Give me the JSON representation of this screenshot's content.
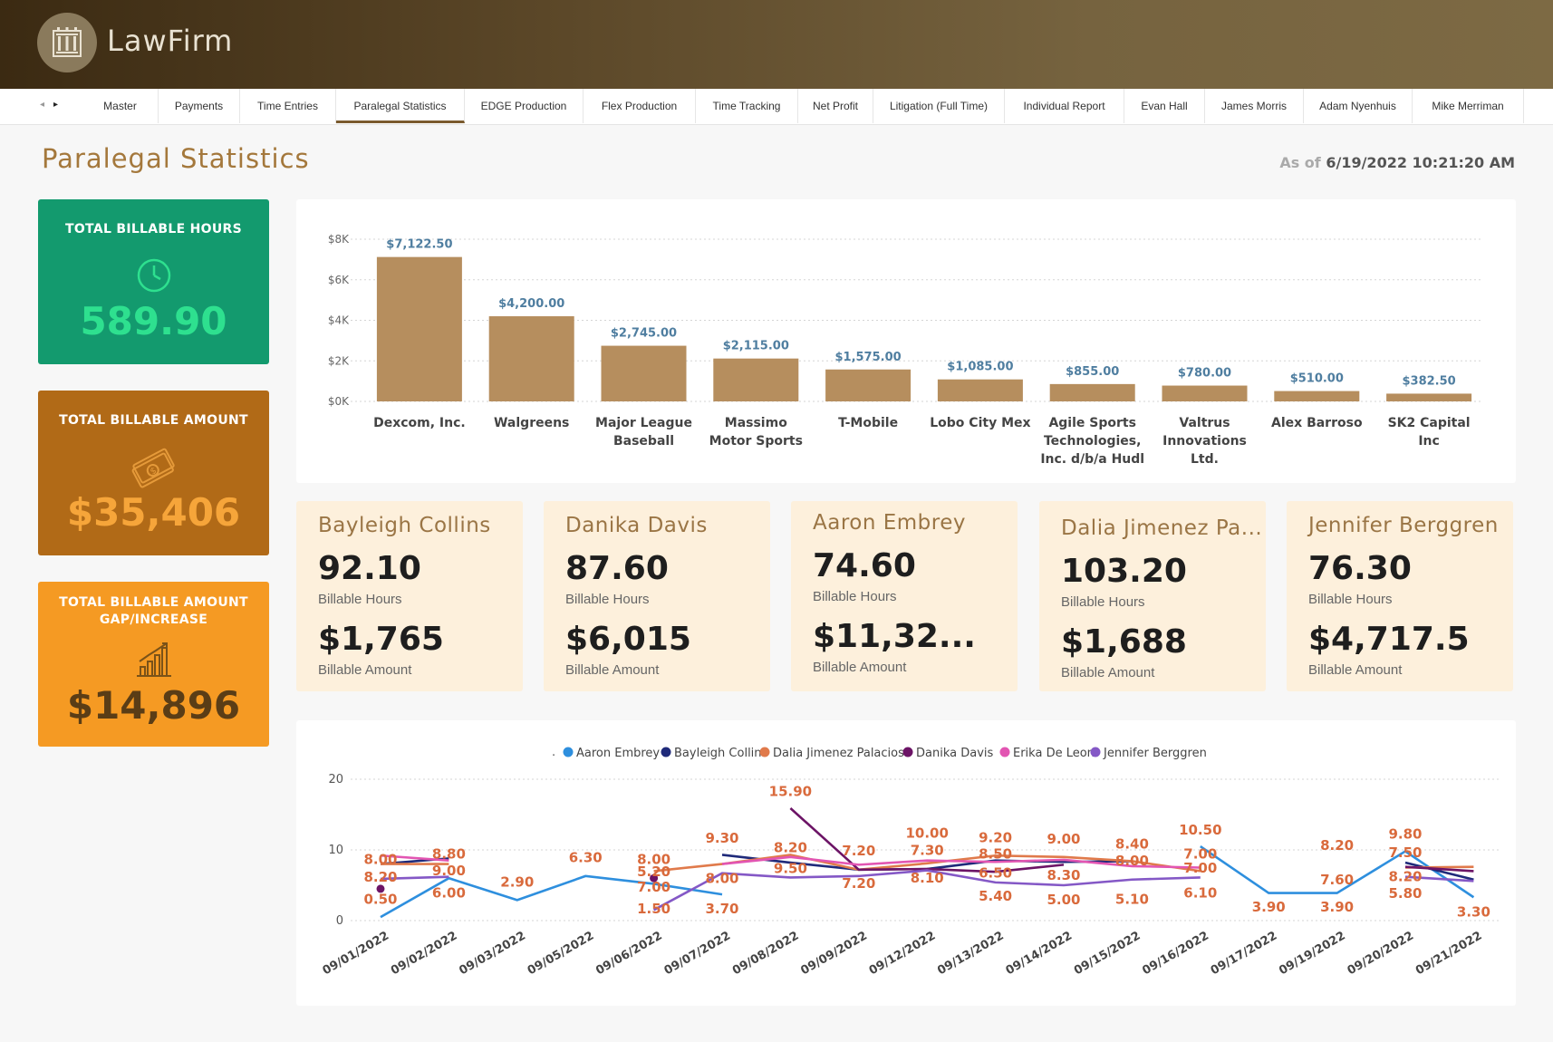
{
  "app": {
    "name": "LawFirm"
  },
  "tabs": [
    "Master",
    "Payments",
    "Time Entries",
    "Paralegal Statistics",
    "EDGE Production",
    "Flex Production",
    "Time Tracking",
    "Net Profit",
    "Litigation (Full Time)",
    "Individual Report",
    "Evan Hall",
    "James Morris",
    "Adam Nyenhuis",
    "Mike Merriman"
  ],
  "active_tab": "Paralegal Statistics",
  "page": {
    "title": "Paralegal Statistics",
    "as_of_label": "As of",
    "as_of_value": "6/19/2022 10:21:20 AM"
  },
  "kpis": {
    "hours": {
      "label": "TOTAL BILLABLE HOURS",
      "value": "589.90",
      "color": "#139a6e",
      "value_color": "#2ee08f",
      "icon": "clock-icon"
    },
    "amount": {
      "label": "TOTAL BILLABLE AMOUNT",
      "value": "$35,406",
      "color": "#b16a17",
      "value_color": "#f6a53a",
      "icon": "money-icon"
    },
    "gap": {
      "label_line1": "TOTAL BILLABLE AMOUNT",
      "label_line2": "GAP/INCREASE",
      "value": "$14,896",
      "color": "#f59a23",
      "value_color": "#5a3d16",
      "icon": "bar-chart-icon"
    }
  },
  "people": [
    {
      "name": "Bayleigh Collins",
      "hours": "92.10",
      "hours_label": "Billable Hours",
      "amount": "$1,765",
      "amount_label": "Billable Amount"
    },
    {
      "name": "Danika Davis",
      "hours": "87.60",
      "hours_label": "Billable Hours",
      "amount": "$6,015",
      "amount_label": "Billable Amount"
    },
    {
      "name": "Aaron Embrey",
      "hours": "74.60",
      "hours_label": "Billable Hours",
      "amount": "$11,32...",
      "amount_label": "Billable Amount"
    },
    {
      "name": "Dalia Jimenez Pa...",
      "hours": "103.20",
      "hours_label": "Billable Hours",
      "amount": "$1,688",
      "amount_label": "Billable Amount"
    },
    {
      "name": "Jennifer Berggren",
      "hours": "76.30",
      "hours_label": "Billable Hours",
      "amount": "$4,717.5",
      "amount_label": "Billable Amount"
    }
  ],
  "chart_data": [
    {
      "type": "bar",
      "categories": [
        "Dexcom, Inc.",
        "Walgreens",
        "Major League Baseball",
        "Massimo Motor Sports",
        "T-Mobile",
        "Lobo City Mex",
        "Agile Sports Technologies, Inc. d/b/a Hudl",
        "Valtrus Innovations Ltd.",
        "Alex Barroso",
        "SK2 Capital Inc"
      ],
      "category_lines": [
        [
          "Dexcom, Inc."
        ],
        [
          "Walgreens"
        ],
        [
          "Major League",
          "Baseball"
        ],
        [
          "Massimo",
          "Motor Sports"
        ],
        [
          "T-Mobile"
        ],
        [
          "Lobo City Mex"
        ],
        [
          "Agile Sports",
          "Technologies,",
          "Inc. d/b/a Hudl"
        ],
        [
          "Valtrus",
          "Innovations",
          "Ltd."
        ],
        [
          "Alex Barroso"
        ],
        [
          "SK2 Capital",
          "Inc"
        ]
      ],
      "values": [
        7122.5,
        4200,
        2745,
        2115,
        1575,
        1085,
        855,
        780,
        510,
        382.5
      ],
      "data_labels": [
        "$7,122.50",
        "$4,200.00",
        "$2,745.00",
        "$2,115.00",
        "$1,575.00",
        "$1,085.00",
        "$855.00",
        "$780.00",
        "$510.00",
        "$382.50"
      ],
      "y_ticks": [
        "$0K",
        "$2K",
        "$4K",
        "$6K",
        "$8K"
      ],
      "y_tick_values": [
        0,
        2000,
        4000,
        6000,
        8000
      ],
      "ylim": [
        0,
        8000
      ],
      "bar_color": "#b68e5e",
      "label_color": "#4f7ea0",
      "grid": true
    },
    {
      "type": "line",
      "x": [
        "09/01/2022",
        "09/02/2022",
        "09/03/2022",
        "09/05/2022",
        "09/06/2022",
        "09/07/2022",
        "09/08/2022",
        "09/09/2022",
        "09/12/2022",
        "09/13/2022",
        "09/14/2022",
        "09/15/2022",
        "09/16/2022",
        "09/17/2022",
        "09/19/2022",
        "09/20/2022",
        "09/21/2022"
      ],
      "y_ticks": [
        "0",
        "10",
        "20"
      ],
      "y_tick_values": [
        0,
        10,
        20
      ],
      "ylim": [
        0,
        20
      ],
      "legend_marker": ".",
      "legend_position": "top",
      "series": [
        {
          "name": "Aaron Embrey",
          "color": "#2e8fde",
          "values": [
            0.5,
            6.0,
            2.9,
            6.3,
            5.2,
            3.7,
            null,
            null,
            null,
            null,
            null,
            null,
            10.5,
            3.9,
            3.9,
            9.8,
            3.3
          ]
        },
        {
          "name": "Bayleigh Collins",
          "color": "#1f2a7a",
          "values": [
            8.0,
            8.8,
            null,
            null,
            null,
            9.3,
            8.2,
            7.2,
            7.3,
            8.5,
            8.3,
            8.4,
            null,
            null,
            null,
            8.2,
            5.8
          ]
        },
        {
          "name": "Dalia Jimenez Palacios",
          "color": "#e07a4b",
          "values": [
            8.0,
            8.0,
            null,
            null,
            7.0,
            8.0,
            9.3,
            7.2,
            8.1,
            9.2,
            9.0,
            8.4,
            7.0,
            null,
            null,
            7.5,
            7.6
          ]
        },
        {
          "name": "Danika Davis",
          "color": "#6c1466",
          "values": [
            4.5,
            null,
            null,
            null,
            6.0,
            null,
            15.9,
            7.2,
            7.3,
            6.9,
            7.9,
            null,
            null,
            null,
            null,
            7.6,
            7.0
          ]
        },
        {
          "name": "Erika De Leon",
          "color": "#e255b2",
          "values": [
            9.2,
            8.5,
            null,
            null,
            null,
            8.0,
            9.0,
            7.9,
            8.5,
            8.3,
            8.6,
            7.7,
            7.5,
            null,
            null,
            null,
            null
          ]
        },
        {
          "name": "Jennifer Berggren",
          "color": "#8458c6",
          "values": [
            5.9,
            6.2,
            null,
            null,
            1.5,
            6.7,
            6.1,
            6.3,
            7.1,
            5.4,
            5.0,
            5.8,
            6.1,
            null,
            null,
            6.2,
            5.6
          ]
        }
      ],
      "data_labels": [
        {
          "x": "09/01/2022",
          "text": "8.00",
          "y": 8.0
        },
        {
          "x": "09/01/2022",
          "text": "8.20",
          "y": 5.5
        },
        {
          "x": "09/01/2022",
          "text": "0.50",
          "y": 2.4
        },
        {
          "x": "09/02/2022",
          "text": "8.80",
          "y": 8.8
        },
        {
          "x": "09/02/2022",
          "text": "9.00",
          "y": 6.4
        },
        {
          "x": "09/02/2022",
          "text": "6.00",
          "y": 3.3
        },
        {
          "x": "09/03/2022",
          "text": "2.90",
          "y": 4.8
        },
        {
          "x": "09/05/2022",
          "text": "6.30",
          "y": 8.3
        },
        {
          "x": "09/06/2022",
          "text": "8.00",
          "y": 8.0
        },
        {
          "x": "09/06/2022",
          "text": "5.20",
          "y": 6.3
        },
        {
          "x": "09/06/2022",
          "text": "7.00",
          "y": 4.1
        },
        {
          "x": "09/06/2022",
          "text": "1.50",
          "y": 1.0
        },
        {
          "x": "09/07/2022",
          "text": "9.30",
          "y": 11.0
        },
        {
          "x": "09/07/2022",
          "text": "8.00",
          "y": 5.3
        },
        {
          "x": "09/07/2022",
          "text": "3.70",
          "y": 1.0
        },
        {
          "x": "09/08/2022",
          "text": "15.90",
          "y": 17.6
        },
        {
          "x": "09/08/2022",
          "text": "8.20",
          "y": 9.7
        },
        {
          "x": "09/08/2022",
          "text": "9.50",
          "y": 6.7
        },
        {
          "x": "09/09/2022",
          "text": "7.20",
          "y": 9.2
        },
        {
          "x": "09/09/2022",
          "text": "7.20",
          "y": 4.6
        },
        {
          "x": "09/12/2022",
          "text": "10.00",
          "y": 11.7
        },
        {
          "x": "09/12/2022",
          "text": "7.30",
          "y": 9.3
        },
        {
          "x": "09/12/2022",
          "text": "8.10",
          "y": 5.4
        },
        {
          "x": "09/13/2022",
          "text": "9.20",
          "y": 11.1
        },
        {
          "x": "09/13/2022",
          "text": "8.50",
          "y": 8.8
        },
        {
          "x": "09/13/2022",
          "text": "6.50",
          "y": 6.1
        },
        {
          "x": "09/13/2022",
          "text": "5.40",
          "y": 2.8
        },
        {
          "x": "09/14/2022",
          "text": "9.00",
          "y": 10.9
        },
        {
          "x": "09/14/2022",
          "text": "8.30",
          "y": 5.8
        },
        {
          "x": "09/14/2022",
          "text": "5.00",
          "y": 2.3
        },
        {
          "x": "09/15/2022",
          "text": "8.40",
          "y": 10.2
        },
        {
          "x": "09/15/2022",
          "text": "8.00",
          "y": 7.8
        },
        {
          "x": "09/15/2022",
          "text": "5.10",
          "y": 2.4
        },
        {
          "x": "09/16/2022",
          "text": "10.50",
          "y": 12.2
        },
        {
          "x": "09/16/2022",
          "text": "7.00",
          "y": 8.8
        },
        {
          "x": "09/16/2022",
          "text": "7.00",
          "y": 6.8
        },
        {
          "x": "09/16/2022",
          "text": "6.10",
          "y": 3.3
        },
        {
          "x": "09/17/2022",
          "text": "3.90",
          "y": 1.3
        },
        {
          "x": "09/19/2022",
          "text": "8.20",
          "y": 10.0
        },
        {
          "x": "09/19/2022",
          "text": "7.60",
          "y": 5.1
        },
        {
          "x": "09/19/2022",
          "text": "3.90",
          "y": 1.3
        },
        {
          "x": "09/20/2022",
          "text": "9.80",
          "y": 11.6
        },
        {
          "x": "09/20/2022",
          "text": "7.50",
          "y": 9.0
        },
        {
          "x": "09/20/2022",
          "text": "8.20",
          "y": 5.6
        },
        {
          "x": "09/20/2022",
          "text": "5.80",
          "y": 3.2
        },
        {
          "x": "09/21/2022",
          "text": "3.30",
          "y": 0.6
        }
      ],
      "label_color": "#d96a3c",
      "grid": true
    }
  ]
}
